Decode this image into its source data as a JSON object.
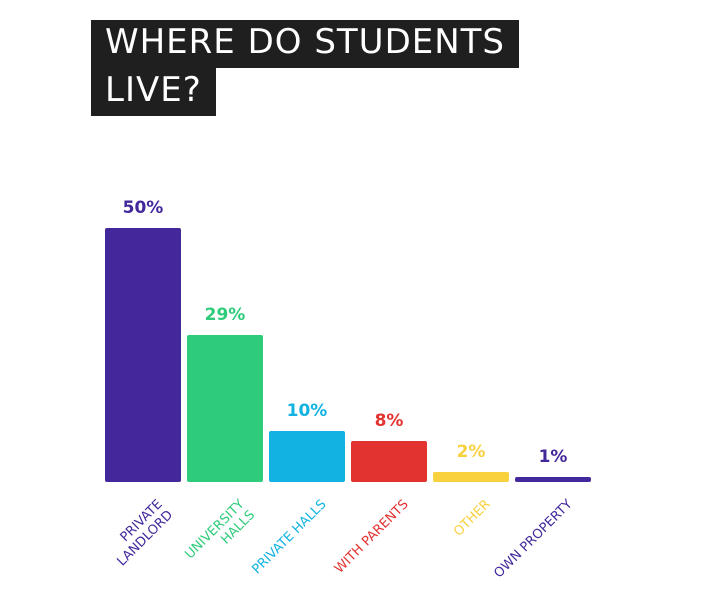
{
  "chart_data": {
    "type": "bar",
    "title": "WHERE DO STUDENTS LIVE?",
    "categories": [
      "PRIVATE LANDLORD",
      "UNIVERSITY HALLS",
      "PRIVATE HALLS",
      "WITH PARENTS",
      "OTHER",
      "OWN PROPERTY"
    ],
    "values": [
      50,
      29,
      10,
      8,
      2,
      1
    ],
    "value_labels": [
      "50%",
      "29%",
      "10%",
      "8%",
      "2%",
      "1%"
    ],
    "colors": [
      "#43289b",
      "#2ecc7a",
      "#12b3e3",
      "#e23330",
      "#f8d13f",
      "#43289b"
    ]
  }
}
